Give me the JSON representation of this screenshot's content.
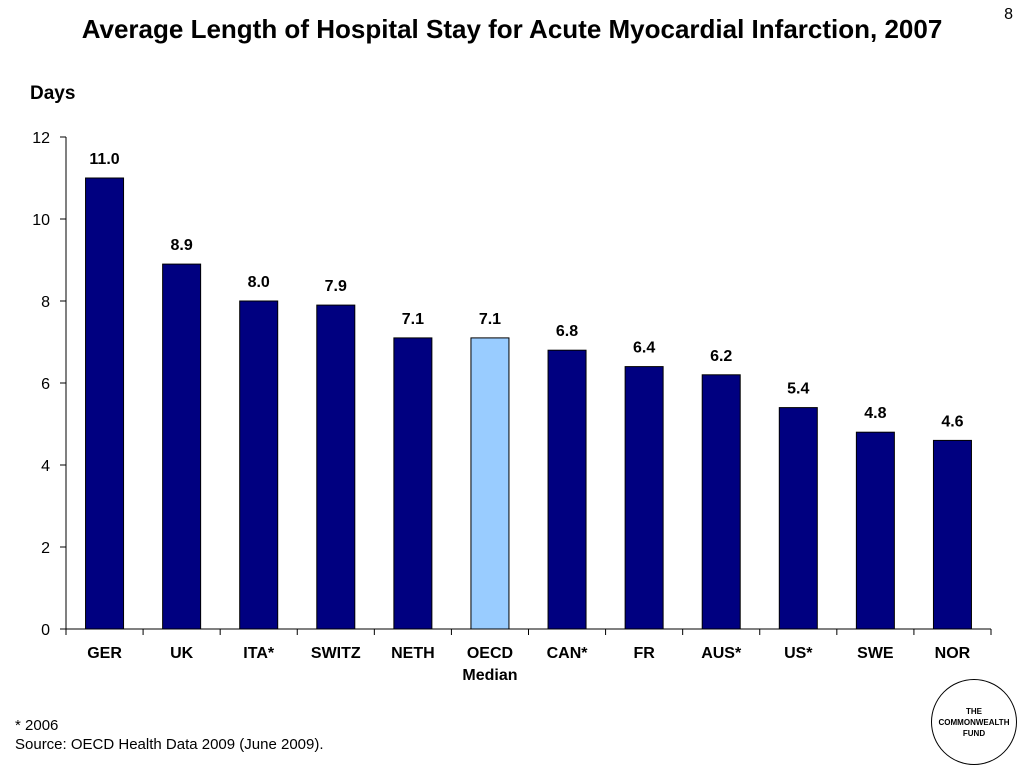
{
  "slide": {
    "number": "8",
    "title": "Average Length of Hospital Stay for Acute Myocardial Infarction, 2007",
    "unit_label": "Days"
  },
  "footnote": {
    "asterisk_note": "* 2006",
    "source": "Source: OECD Health Data 2009 (June 2009)."
  },
  "logo": {
    "line1": "THE",
    "line2": "COMMONWEALTH",
    "line3": "FUND"
  },
  "colors": {
    "bar": "#000080",
    "highlight": "#99CCFF",
    "outline": "#000000"
  },
  "chart_data": {
    "type": "bar",
    "categories": [
      [
        "GER"
      ],
      [
        "UK"
      ],
      [
        "ITA*"
      ],
      [
        "SWITZ"
      ],
      [
        "NETH"
      ],
      [
        "OECD",
        "Median"
      ],
      [
        "CAN*"
      ],
      [
        "FR"
      ],
      [
        "AUS*"
      ],
      [
        "US*"
      ],
      [
        "SWE"
      ],
      [
        "NOR"
      ]
    ],
    "values": [
      11.0,
      8.9,
      8.0,
      7.9,
      7.1,
      7.1,
      6.8,
      6.4,
      6.2,
      5.4,
      4.8,
      4.6
    ],
    "data_labels": [
      "11.0",
      "8.9",
      "8.0",
      "7.9",
      "7.1",
      "7.1",
      "6.8",
      "6.4",
      "6.2",
      "5.4",
      "4.8",
      "4.6"
    ],
    "highlight_index": 5,
    "ylabel": "Days",
    "ylim": [
      0,
      12
    ],
    "yticks": [
      0,
      2,
      4,
      6,
      8,
      10,
      12
    ],
    "grid": false,
    "legend": "none"
  }
}
